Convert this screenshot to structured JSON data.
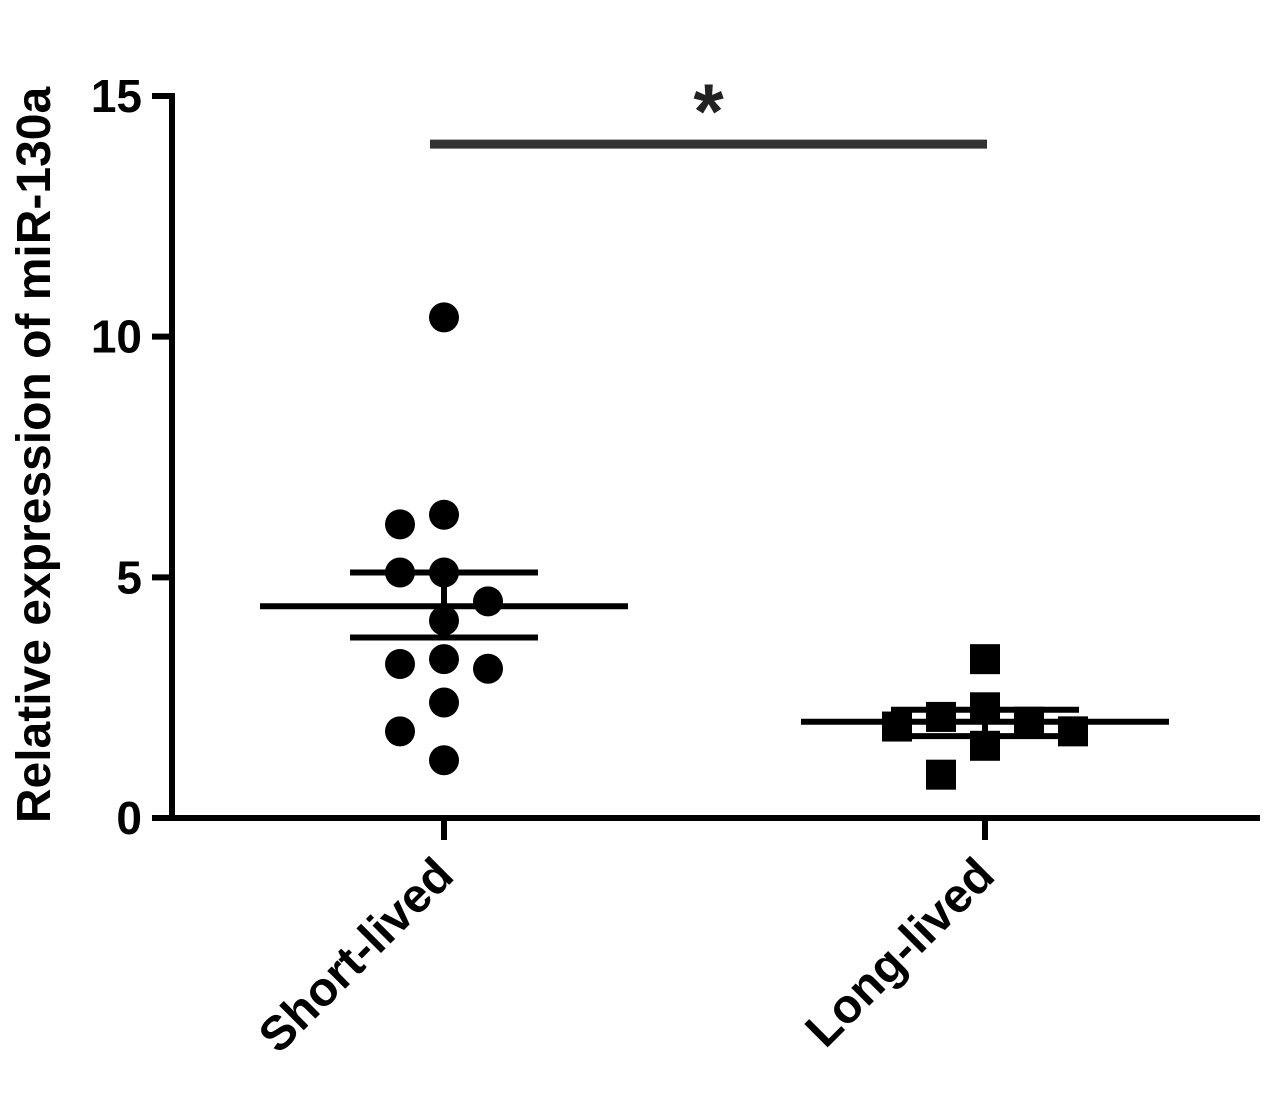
{
  "chart_data": {
    "type": "scatter",
    "title": "",
    "xlabel": "",
    "ylabel": "Relative expression of miR-130a",
    "ylim": [
      0,
      15
    ],
    "yticks": [
      "0",
      "5",
      "10",
      "15"
    ],
    "categories": [
      "Short-lived",
      "Long-lived"
    ],
    "grid": false,
    "series": [
      {
        "category": "Short-lived",
        "marker": "circle",
        "points": [
          10.4,
          6.3,
          6.1,
          5.1,
          5.1,
          4.5,
          4.1,
          3.3,
          3.2,
          3.1,
          2.4,
          1.8,
          1.2
        ],
        "mean": 4.4,
        "sem_low": 3.75,
        "sem_high": 5.1
      },
      {
        "category": "Long-lived",
        "marker": "square",
        "points": [
          3.3,
          2.3,
          2.1,
          2.0,
          1.9,
          1.8,
          1.5,
          0.9
        ],
        "mean": 2.0,
        "sem_low": 1.7,
        "sem_high": 2.25
      }
    ],
    "significance": {
      "label": "*",
      "y": 14.0,
      "between": [
        "Short-lived",
        "Long-lived"
      ]
    }
  }
}
